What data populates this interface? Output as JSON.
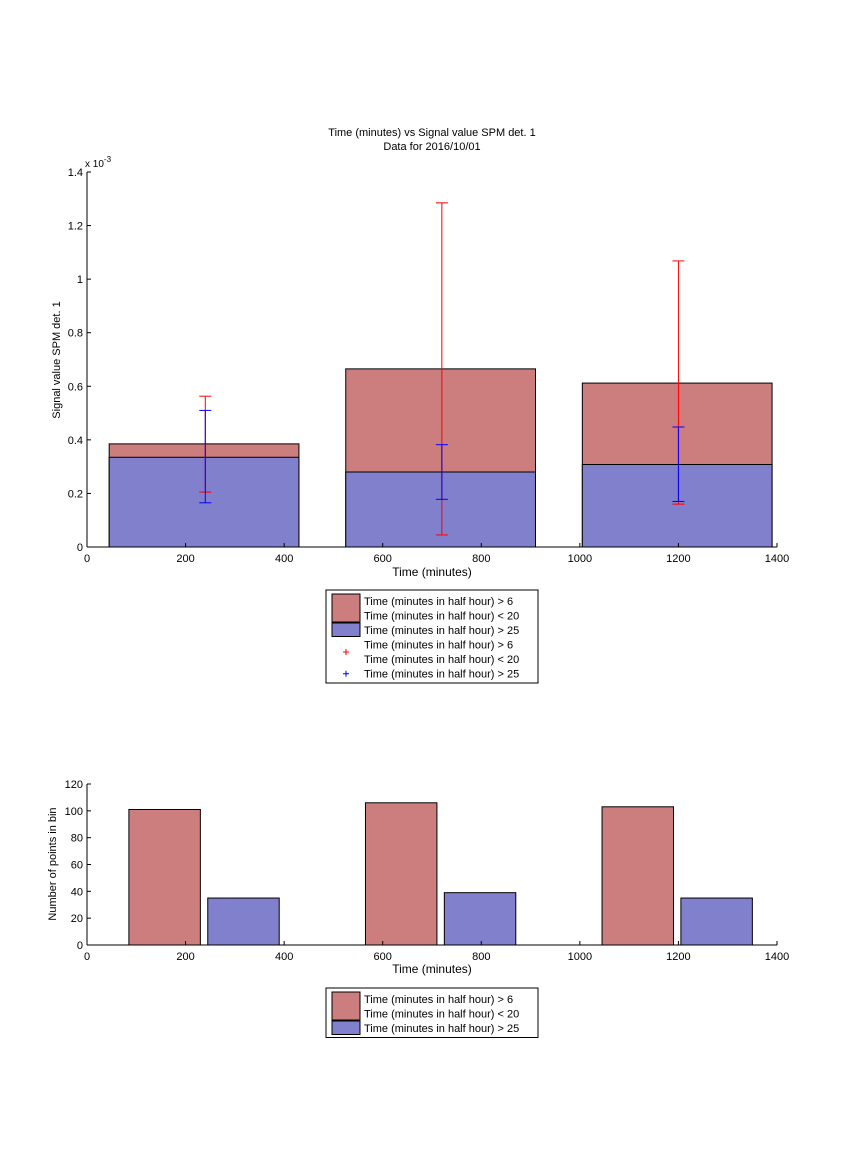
{
  "chart_data": [
    {
      "type": "bar",
      "title": "Time (minutes) vs Signal value SPM det. 1",
      "subtitle": "Data for 2016/10/01",
      "xlabel": "Time (minutes)",
      "ylabel": "Signal value SPM det. 1",
      "y_exponent_label": "x 10",
      "y_exponent_power": "-3",
      "xlim": [
        0,
        1400
      ],
      "ylim": [
        0,
        1.4
      ],
      "x_ticks": [
        "0",
        "200",
        "400",
        "600",
        "800",
        "1000",
        "1200",
        "1400"
      ],
      "y_ticks": [
        "0",
        "0.2",
        "0.4",
        "0.6",
        "0.8",
        "1",
        "1.2",
        "1.4"
      ],
      "grid": false,
      "legend_position": "below",
      "bars": [
        {
          "x_start": 45,
          "x_end": 430,
          "red": 0.385,
          "blue": 0.335
        },
        {
          "x_start": 525,
          "x_end": 910,
          "red": 0.665,
          "blue": 0.28
        },
        {
          "x_start": 1005,
          "x_end": 1390,
          "red": 0.612,
          "blue": 0.308
        }
      ],
      "errorbars": [
        {
          "series": "red",
          "x": 240,
          "low": 0.205,
          "high": 0.563
        },
        {
          "series": "blue",
          "x": 240,
          "low": 0.165,
          "high": 0.51
        },
        {
          "series": "red",
          "x": 720,
          "low": 0.045,
          "high": 1.285
        },
        {
          "series": "blue",
          "x": 720,
          "low": 0.178,
          "high": 0.382
        },
        {
          "series": "red",
          "x": 1200,
          "low": 0.16,
          "high": 1.068
        },
        {
          "series": "blue",
          "x": 1200,
          "low": 0.17,
          "high": 0.448
        }
      ],
      "legend": [
        {
          "kind": "patch",
          "color": "red",
          "lines": [
            "Time (minutes in half hour) > 6",
            "Time (minutes in half hour) < 20"
          ]
        },
        {
          "kind": "patch",
          "color": "blue",
          "lines": [
            "Time (minutes in half hour) > 25"
          ]
        },
        {
          "kind": "marker",
          "color": "red",
          "lines": [
            "Time (minutes in half hour) > 6",
            "Time (minutes in half hour) < 20"
          ]
        },
        {
          "kind": "marker",
          "color": "blue",
          "lines": [
            "Time (minutes in half hour) > 25"
          ]
        }
      ]
    },
    {
      "type": "bar",
      "xlabel": "Time (minutes)",
      "ylabel": "Number of points in bin",
      "xlim": [
        0,
        1400
      ],
      "ylim": [
        0,
        120
      ],
      "x_ticks": [
        "0",
        "200",
        "400",
        "600",
        "800",
        "1000",
        "1200",
        "1400"
      ],
      "y_ticks": [
        "0",
        "20",
        "40",
        "60",
        "80",
        "100",
        "120"
      ],
      "grid": false,
      "legend_position": "below",
      "bars": [
        {
          "series": "red",
          "x_start": 85,
          "x_end": 230,
          "value": 101
        },
        {
          "series": "blue",
          "x_start": 245,
          "x_end": 390,
          "value": 35
        },
        {
          "series": "red",
          "x_start": 565,
          "x_end": 710,
          "value": 106
        },
        {
          "series": "blue",
          "x_start": 725,
          "x_end": 870,
          "value": 39
        },
        {
          "series": "red",
          "x_start": 1045,
          "x_end": 1190,
          "value": 103
        },
        {
          "series": "blue",
          "x_start": 1205,
          "x_end": 1350,
          "value": 35
        }
      ],
      "legend": [
        {
          "kind": "patch",
          "color": "red",
          "lines": [
            "Time (minutes in half hour) > 6",
            "Time (minutes in half hour) < 20"
          ]
        },
        {
          "kind": "patch",
          "color": "blue",
          "lines": [
            "Time (minutes in half hour) > 25"
          ]
        }
      ]
    }
  ],
  "colors": {
    "red_fill": "#cc7e7e",
    "blue_fill": "#8080cc",
    "red_line": "#ff0000",
    "blue_line": "#0000ff",
    "axis": "#000000"
  }
}
